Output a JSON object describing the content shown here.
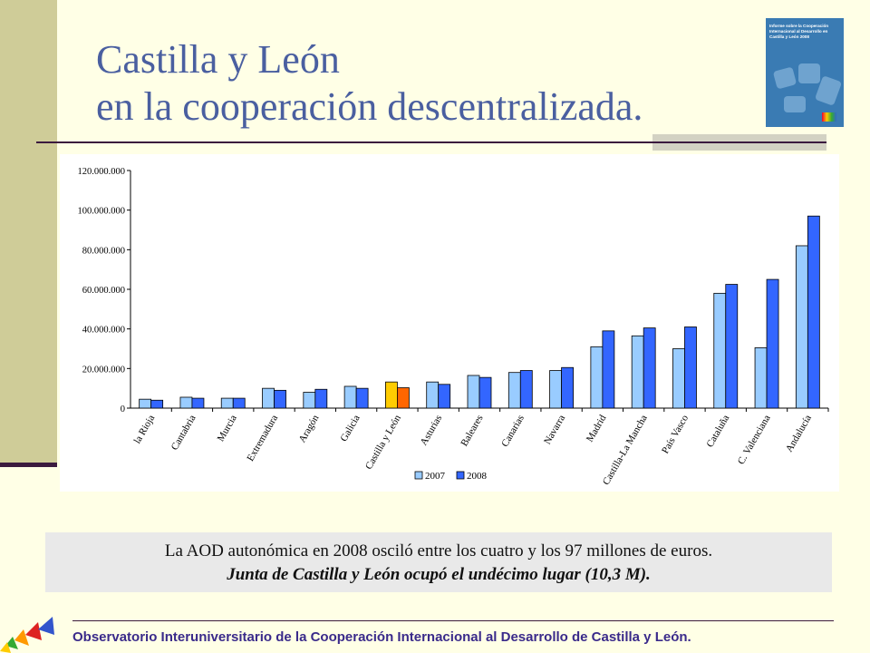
{
  "slide": {
    "title_line1": "Castilla y León",
    "title_line2": "en la cooperación descentralizada."
  },
  "cover": {
    "text": "Informe sobre la Cooperación Internacional al Desarrollo en Castilla y León 2008"
  },
  "note": {
    "line1": "La AOD autonómica en 2008 osciló entre los cuatro y los 97 millones de euros.",
    "line2": "Junta de Castilla y León ocupó el undécimo lugar (10,3 M)."
  },
  "footer": {
    "text": "Observatorio Interuniversitario de la Cooperación Internacional al Desarrollo de Castilla y León."
  },
  "colors": {
    "series_2007": "#99ccff",
    "series_2008": "#3366ff",
    "highlight_2007": "#ffcc00",
    "highlight_2008": "#ff6600",
    "title": "#4a5fa0"
  },
  "chart_data": {
    "type": "bar",
    "categories": [
      "la Rioja",
      "Cantabria",
      "Murcia",
      "Extremadura",
      "Aragón",
      "Galicia",
      "Castilla y León",
      "Asturias",
      "Baleares",
      "Canarias",
      "Navarra",
      "Madrid",
      "Castilla-La Mancha",
      "País Vasco",
      "Cataluña",
      "C. Valenciana",
      "Andalucía"
    ],
    "series": [
      {
        "name": "2007",
        "values": [
          4500000,
          5500000,
          5000000,
          10000000,
          8000000,
          11000000,
          13200000,
          13200000,
          16500000,
          18000000,
          19000000,
          31000000,
          36500000,
          30000000,
          58000000,
          30500000,
          82000000
        ]
      },
      {
        "name": "2008",
        "values": [
          4000000,
          5000000,
          5000000,
          9000000,
          9500000,
          10000000,
          10300000,
          12000000,
          15500000,
          19000000,
          20500000,
          39000000,
          40500000,
          41000000,
          62500000,
          65000000,
          97000000
        ]
      }
    ],
    "highlight_category": "Castilla y León",
    "yticks": [
      "0",
      "20.000.000",
      "40.000.000",
      "60.000.000",
      "80.000.000",
      "100.000.000",
      "120.000.000"
    ],
    "ylim": [
      0,
      120000000
    ],
    "legend_position": "bottom",
    "grid": false
  }
}
